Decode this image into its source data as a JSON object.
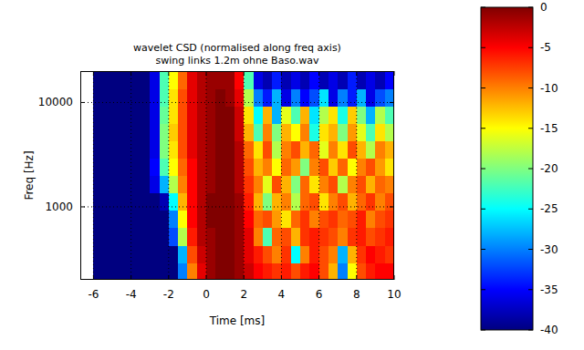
{
  "chart_data": {
    "type": "heatmap",
    "title": "wavelet CSD (normalised along freq axis)",
    "subtitle": "swing links 1.2m ohne Baso.wav",
    "x_label": "Time [ms]",
    "y_label": "Freq [Hz]",
    "xlim": [
      -6.7,
      10
    ],
    "ylim": [
      200,
      20000
    ],
    "xticks": [
      -6,
      -4,
      -2,
      0,
      2,
      4,
      6,
      8,
      10
    ],
    "yticks": [
      1000,
      10000
    ],
    "log": "y",
    "grid": true,
    "x": [
      -5.75,
      -5.25,
      -4.75,
      -4.25,
      -3.75,
      -3.25,
      -2.75,
      -2.25,
      -1.75,
      -1.25,
      -0.75,
      -0.25,
      0.25,
      0.75,
      1.25,
      1.75,
      2.25,
      2.75,
      3.25,
      3.75,
      4.25,
      4.75,
      5.25,
      5.75,
      6.25,
      6.75,
      7.25,
      7.75,
      8.25,
      8.75,
      9.25,
      9.75
    ],
    "y": [
      242,
      355,
      521,
      765,
      1123,
      1648,
      2419,
      3551,
      5212,
      7650,
      11229,
      16482
    ],
    "z": [
      [
        -40,
        -40,
        -40,
        -40,
        -40,
        -40,
        -40,
        -40,
        -40,
        -30,
        -10,
        -4,
        -1,
        0,
        0,
        -1,
        -3,
        -5,
        -6,
        -7,
        -6,
        -8,
        -6,
        -5,
        -8,
        -12,
        -30,
        -15,
        -8,
        -6,
        -5,
        -5
      ],
      [
        -40,
        -40,
        -40,
        -40,
        -40,
        -40,
        -40,
        -40,
        -40,
        -28,
        -8,
        -3,
        -1,
        0,
        0,
        -1,
        -4,
        -6,
        -8,
        -10,
        -7,
        -25,
        -10,
        -6,
        -8,
        -10,
        -28,
        -12,
        -7,
        -5,
        -6,
        -7
      ],
      [
        -40,
        -40,
        -40,
        -40,
        -40,
        -40,
        -40,
        -40,
        -32,
        -18,
        -6,
        -2,
        -1,
        0,
        0,
        -1,
        -4,
        -10,
        -22,
        -9,
        -8,
        -12,
        -7,
        -6,
        -7,
        -8,
        -10,
        -7,
        -6,
        -8,
        -7,
        -6
      ],
      [
        -40,
        -40,
        -40,
        -40,
        -40,
        -40,
        -40,
        -40,
        -30,
        -15,
        -5,
        -2,
        0,
        0,
        0,
        -1,
        -5,
        -9,
        -8,
        -11,
        -14,
        -9,
        -7,
        -10,
        -8,
        -7,
        -9,
        -8,
        -6,
        -10,
        -8,
        -7
      ],
      [
        -40,
        -40,
        -40,
        -40,
        -40,
        -40,
        -40,
        -38,
        -25,
        -12,
        -5,
        -2,
        0,
        0,
        0,
        -1,
        -6,
        -12,
        -20,
        -12,
        -10,
        -18,
        -9,
        -8,
        -14,
        -10,
        -8,
        -12,
        -9,
        -7,
        -10,
        -8
      ],
      [
        -40,
        -40,
        -40,
        -40,
        -40,
        -40,
        -36,
        -28,
        -18,
        -10,
        -5,
        -2,
        -1,
        0,
        0,
        -2,
        -7,
        -10,
        -16,
        -8,
        -12,
        -20,
        -9,
        -14,
        -10,
        -8,
        -18,
        -10,
        -8,
        -12,
        -9,
        -10
      ],
      [
        -40,
        -40,
        -40,
        -40,
        -40,
        -40,
        -35,
        -22,
        -15,
        -9,
        -5,
        -2,
        -1,
        0,
        0,
        -2,
        -8,
        -12,
        -10,
        -15,
        -9,
        -11,
        -20,
        -10,
        -8,
        -13,
        -9,
        -15,
        -10,
        -8,
        -11,
        -14
      ],
      [
        -40,
        -40,
        -40,
        -40,
        -40,
        -40,
        -36,
        -20,
        -14,
        -8,
        -4,
        -2,
        -1,
        0,
        0,
        -2,
        -9,
        -14,
        -8,
        -18,
        -10,
        -8,
        -12,
        -9,
        -16,
        -10,
        -14,
        -8,
        -12,
        -18,
        -10,
        -12
      ],
      [
        -40,
        -40,
        -40,
        -40,
        -40,
        -40,
        -36,
        -20,
        -13,
        -8,
        -4,
        -2,
        -1,
        0,
        0,
        -3,
        -12,
        -22,
        -10,
        -20,
        -12,
        -15,
        -10,
        -24,
        -14,
        -12,
        -20,
        -11,
        -16,
        -22,
        -14,
        -18
      ],
      [
        -40,
        -40,
        -40,
        -40,
        -40,
        -40,
        -36,
        -21,
        -14,
        -8,
        -4,
        -2,
        -1,
        0,
        0,
        -3,
        -14,
        -25,
        -12,
        -28,
        -16,
        -22,
        -12,
        -26,
        -18,
        -14,
        -24,
        -13,
        -20,
        -28,
        -18,
        -22
      ],
      [
        -40,
        -40,
        -40,
        -40,
        -40,
        -40,
        -36,
        -22,
        -14,
        -8,
        -4,
        -2,
        -1,
        0,
        -1,
        -4,
        -18,
        -30,
        -34,
        -28,
        -36,
        -30,
        -35,
        -32,
        -26,
        -36,
        -30,
        -34,
        -28,
        -36,
        -32,
        -30
      ],
      [
        -40,
        -40,
        -40,
        -40,
        -40,
        -40,
        -36,
        -22,
        -15,
        -9,
        -4,
        -2,
        -1,
        -1,
        -1,
        -5,
        -22,
        -36,
        -38,
        -34,
        -38,
        -36,
        -38,
        -35,
        -38,
        -36,
        -38,
        -34,
        -38,
        -36,
        -38,
        -35
      ]
    ],
    "colorbar_range": [
      -40,
      0
    ],
    "colorbar_ticks": [
      0,
      -5,
      -10,
      -15,
      -20,
      -25,
      -30,
      -35,
      -40
    ]
  }
}
